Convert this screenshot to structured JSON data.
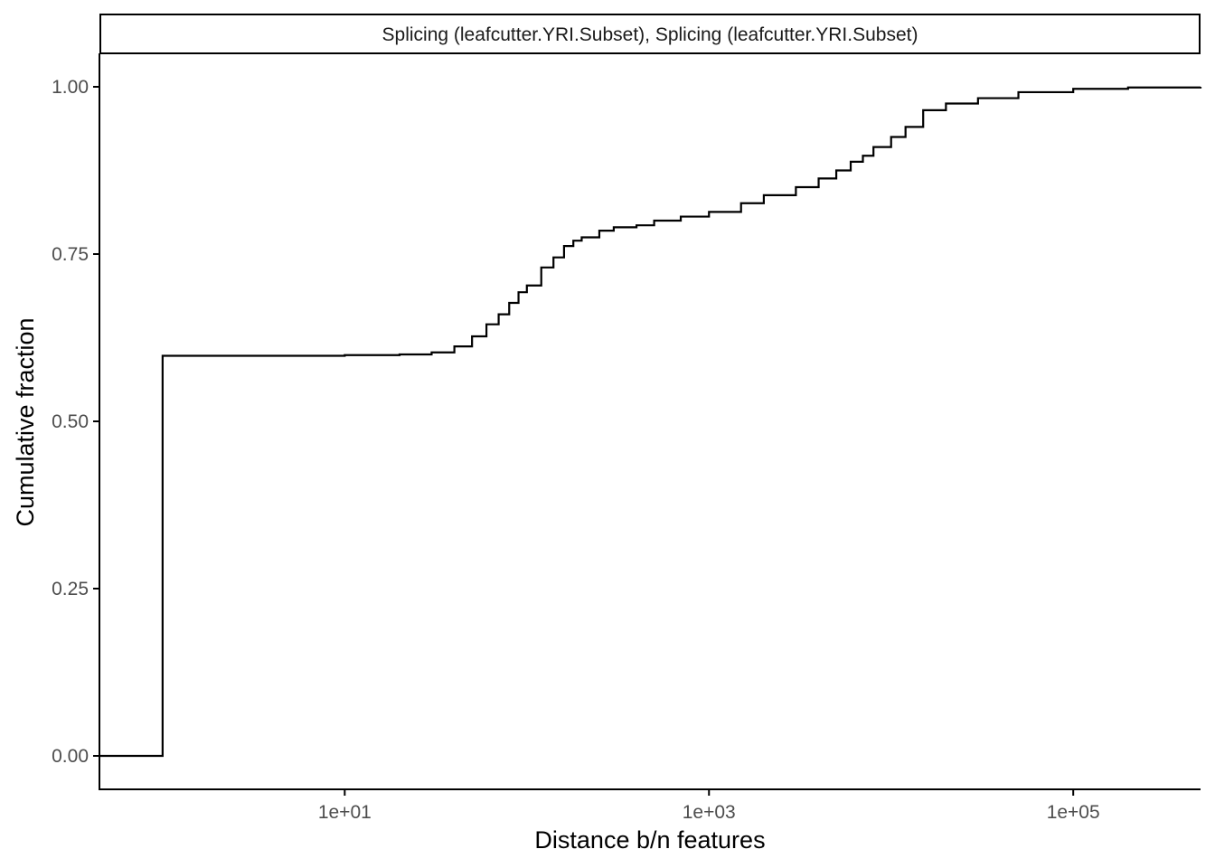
{
  "chart_data": {
    "type": "line",
    "subtype": "ecdf-step",
    "facet_strip": "Splicing (leafcutter.YRI.Subset), Splicing (leafcutter.YRI.Subset)",
    "xlabel": "Distance b/n features",
    "ylabel": "Cumulative fraction",
    "x_scale": "log10",
    "xlim": [
      0.45,
      500000
    ],
    "ylim": [
      -0.05,
      1.05
    ],
    "x_ticks": [
      {
        "value": 10,
        "label": "1e+01"
      },
      {
        "value": 1000,
        "label": "1e+03"
      },
      {
        "value": 100000,
        "label": "1e+05"
      }
    ],
    "y_ticks": [
      {
        "value": 0.0,
        "label": "0.00"
      },
      {
        "value": 0.25,
        "label": "0.25"
      },
      {
        "value": 0.5,
        "label": "0.50"
      },
      {
        "value": 0.75,
        "label": "0.75"
      },
      {
        "value": 1.0,
        "label": "1.00"
      }
    ],
    "grid": false,
    "legend": "none",
    "colors": {
      "line": "#000000",
      "axis": "#000000",
      "tick_label": "#4d4d4d"
    },
    "series": [
      {
        "x": [
          0.45,
          1,
          1,
          10,
          20,
          30,
          40,
          50,
          60,
          70,
          80,
          90,
          100,
          120,
          140,
          160,
          180,
          200,
          250,
          300,
          400,
          500,
          700,
          1000,
          1500,
          2000,
          3000,
          4000,
          5000,
          6000,
          7000,
          8000,
          10000,
          12000,
          15000,
          20000,
          30000,
          50000,
          100000,
          200000,
          500000
        ],
        "y": [
          0,
          0,
          0.598,
          0.599,
          0.6,
          0.603,
          0.612,
          0.627,
          0.645,
          0.66,
          0.677,
          0.693,
          0.703,
          0.73,
          0.745,
          0.762,
          0.77,
          0.775,
          0.785,
          0.79,
          0.793,
          0.8,
          0.806,
          0.813,
          0.826,
          0.838,
          0.85,
          0.863,
          0.875,
          0.888,
          0.897,
          0.91,
          0.925,
          0.94,
          0.965,
          0.975,
          0.983,
          0.992,
          0.997,
          0.999,
          1.0
        ]
      }
    ]
  }
}
